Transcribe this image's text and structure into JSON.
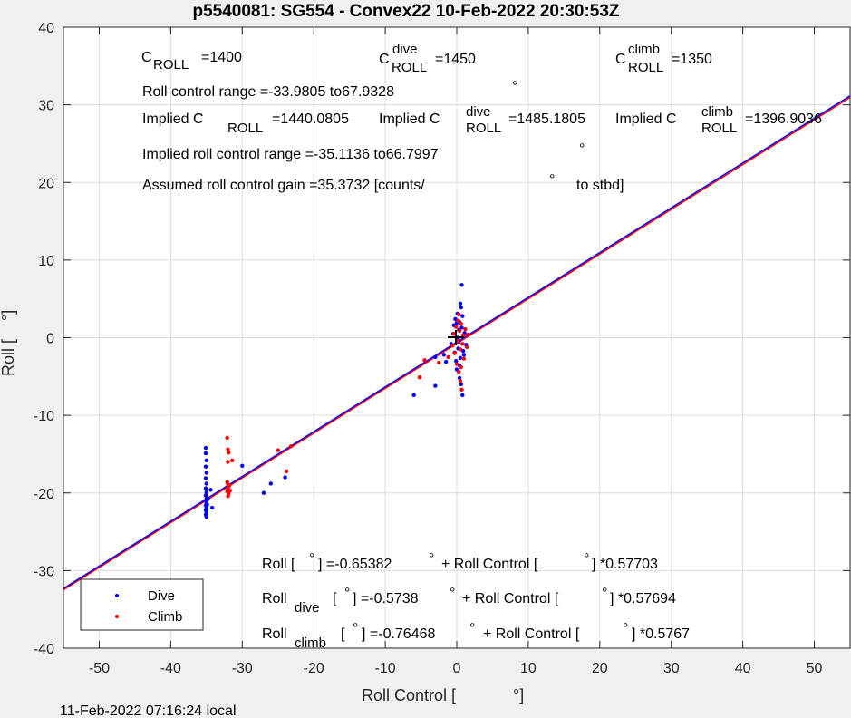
{
  "chart_data": {
    "type": "scatter",
    "title": "p5540081: SG554 - Convex22 10-Feb-2022 20:30:53Z",
    "xlabel": "Roll Control [",
    "xlabel_unit": "°]",
    "ylabel": "Roll [",
    "ylabel_unit": "°]",
    "xlim": [
      -55,
      55
    ],
    "ylim": [
      -40,
      40
    ],
    "x_ticks": [
      -50,
      -40,
      -30,
      -20,
      -10,
      0,
      10,
      20,
      30,
      40,
      50
    ],
    "y_ticks": [
      -40,
      -30,
      -20,
      -10,
      0,
      10,
      20,
      30,
      40
    ],
    "grid": true,
    "legend": {
      "placement": "bottom-left",
      "entries": [
        "Dive",
        "Climb"
      ]
    },
    "colors": {
      "dive": "#0000ff",
      "climb": "#ff0000",
      "fit_dive": "#0000ff",
      "fit_climb": "#ff0000"
    },
    "fit_lines": [
      {
        "name": "dive",
        "intercept": -0.5738,
        "slope": 0.57694
      },
      {
        "name": "climb",
        "intercept": -0.76468,
        "slope": 0.5767
      }
    ],
    "series": [
      {
        "name": "Dive",
        "points": [
          [
            -35.1,
            -14.2
          ],
          [
            -35.1,
            -14.9
          ],
          [
            -35.0,
            -15.8
          ],
          [
            -35.1,
            -16.6
          ],
          [
            -35.0,
            -17.4
          ],
          [
            -35.1,
            -18.1
          ],
          [
            -35.0,
            -18.8
          ],
          [
            -35.1,
            -19.4
          ],
          [
            -35.0,
            -19.9
          ],
          [
            -35.1,
            -20.3
          ],
          [
            -35.0,
            -20.7
          ],
          [
            -35.1,
            -21.0
          ],
          [
            -35.0,
            -21.3
          ],
          [
            -35.1,
            -21.6
          ],
          [
            -35.0,
            -21.9
          ],
          [
            -35.1,
            -22.2
          ],
          [
            -35.0,
            -22.5
          ],
          [
            -35.1,
            -22.8
          ],
          [
            -35.0,
            -23.1
          ],
          [
            -34.8,
            -20.8
          ],
          [
            -34.9,
            -21.5
          ],
          [
            -34.4,
            -19.6
          ],
          [
            -34.2,
            -21.9
          ],
          [
            -30.0,
            -16.5
          ],
          [
            -27.0,
            -20.0
          ],
          [
            -26.0,
            -18.8
          ],
          [
            -24.0,
            -18.0
          ],
          [
            -6.0,
            -7.4
          ],
          [
            -3.0,
            -6.2
          ],
          [
            -3.0,
            -2.5
          ],
          [
            -1.8,
            -2.2
          ],
          [
            -1.5,
            -3.1
          ],
          [
            -0.8,
            -0.8
          ],
          [
            -0.5,
            0.5
          ],
          [
            -0.4,
            1.6
          ],
          [
            -0.3,
            -1.9
          ],
          [
            -0.2,
            2.4
          ],
          [
            -0.1,
            -3.0
          ],
          [
            0.0,
            -4.1
          ],
          [
            0.1,
            3.1
          ],
          [
            0.2,
            -1.4
          ],
          [
            0.3,
            1.0
          ],
          [
            0.4,
            -5.2
          ],
          [
            0.4,
            2.0
          ],
          [
            0.5,
            -2.6
          ],
          [
            0.6,
            3.9
          ],
          [
            0.7,
            6.8
          ],
          [
            0.8,
            -7.4
          ],
          [
            0.5,
            4.4
          ],
          [
            0.6,
            -6.0
          ],
          [
            0.2,
            0.0
          ],
          [
            0.3,
            -0.5
          ],
          [
            0.7,
            1.3
          ],
          [
            0.9,
            -1.7
          ],
          [
            1.1,
            0.6
          ],
          [
            1.3,
            -0.9
          ],
          [
            0.0,
            1.9
          ],
          [
            0.4,
            -3.6
          ],
          [
            0.8,
            2.8
          ],
          [
            1.0,
            -2.2
          ]
        ]
      },
      {
        "name": "Climb",
        "points": [
          [
            -32.1,
            -12.9
          ],
          [
            -32.0,
            -14.4
          ],
          [
            -31.9,
            -14.8
          ],
          [
            -32.0,
            -16.0
          ],
          [
            -31.4,
            -15.8
          ],
          [
            -32.1,
            -18.6
          ],
          [
            -32.0,
            -18.9
          ],
          [
            -31.9,
            -19.2
          ],
          [
            -32.0,
            -19.5
          ],
          [
            -32.1,
            -19.8
          ],
          [
            -31.9,
            -20.1
          ],
          [
            -32.0,
            -20.4
          ],
          [
            -31.8,
            -19.0
          ],
          [
            -31.7,
            -19.7
          ],
          [
            -25.0,
            -14.5
          ],
          [
            -23.8,
            -17.2
          ],
          [
            -23.2,
            -14.0
          ],
          [
            -5.2,
            -5.1
          ],
          [
            -4.5,
            -2.9
          ],
          [
            -2.5,
            -3.2
          ],
          [
            -1.2,
            -2.5
          ],
          [
            -0.6,
            -1.0
          ],
          [
            -0.4,
            0.5
          ],
          [
            -0.3,
            -2.0
          ],
          [
            -0.1,
            1.4
          ],
          [
            0.0,
            -3.4
          ],
          [
            0.1,
            -0.4
          ],
          [
            0.2,
            2.2
          ],
          [
            0.3,
            -4.4
          ],
          [
            0.4,
            0.9
          ],
          [
            0.5,
            -5.6
          ],
          [
            0.5,
            -1.5
          ],
          [
            0.6,
            1.8
          ],
          [
            0.7,
            -6.7
          ],
          [
            0.8,
            -0.8
          ],
          [
            0.9,
            0.3
          ],
          [
            1.0,
            -2.7
          ],
          [
            1.2,
            1.1
          ],
          [
            1.4,
            -1.2
          ],
          [
            1.6,
            0.4
          ],
          [
            0.3,
            3.0
          ],
          [
            0.6,
            -3.8
          ]
        ]
      }
    ],
    "annotations": {
      "c_roll": "C",
      "c_roll_sub": "ROLL",
      "c_roll_val": "=1400",
      "c_roll_dive": "C",
      "c_roll_dive_sup": "dive",
      "c_roll_dive_sub": "ROLL",
      "c_roll_dive_val": "=1450",
      "c_roll_climb": "C",
      "c_roll_climb_sup": "climb",
      "c_roll_climb_sub": "ROLL",
      "c_roll_climb_val": "=1350",
      "roll_range": "Roll control range =-33.9805 to67.9328",
      "deg": "°",
      "implied_c": "Implied C",
      "implied_c_sub": "ROLL",
      "implied_c_val": "=1440.0805",
      "implied_c_dive": "Implied C",
      "implied_c_dive_sup": "dive",
      "implied_c_dive_sub": "ROLL",
      "implied_c_dive_val": "=1485.1805",
      "implied_c_climb": "Implied C",
      "implied_c_climb_sup": "climb",
      "implied_c_climb_sub": "ROLL",
      "implied_c_climb_val": "=1396.9036",
      "implied_range": "Implied roll control range =-35.1136 to66.7997",
      "gain": "Assumed roll control gain =35.3732 [counts/",
      "gain_tail": "to stbd]",
      "fit_all_a": "Roll [",
      "fit_all_b": "] =-0.65382",
      "fit_all_c": "+ Roll Control [",
      "fit_all_d": "] *0.57703",
      "fit_dive_a": "Roll",
      "fit_dive_sub": "dive",
      "fit_dive_b": "[",
      "fit_dive_c": "] =-0.5738",
      "fit_dive_d": "+ Roll Control [",
      "fit_dive_e": "] *0.57694",
      "fit_climb_a": "Roll",
      "fit_climb_sub": "climb",
      "fit_climb_b": "[",
      "fit_climb_c": "] =-0.76468",
      "fit_climb_d": "+ Roll Control [",
      "fit_climb_e": "] *0.5767"
    },
    "footer": "11-Feb-2022 07:16:24 local"
  }
}
